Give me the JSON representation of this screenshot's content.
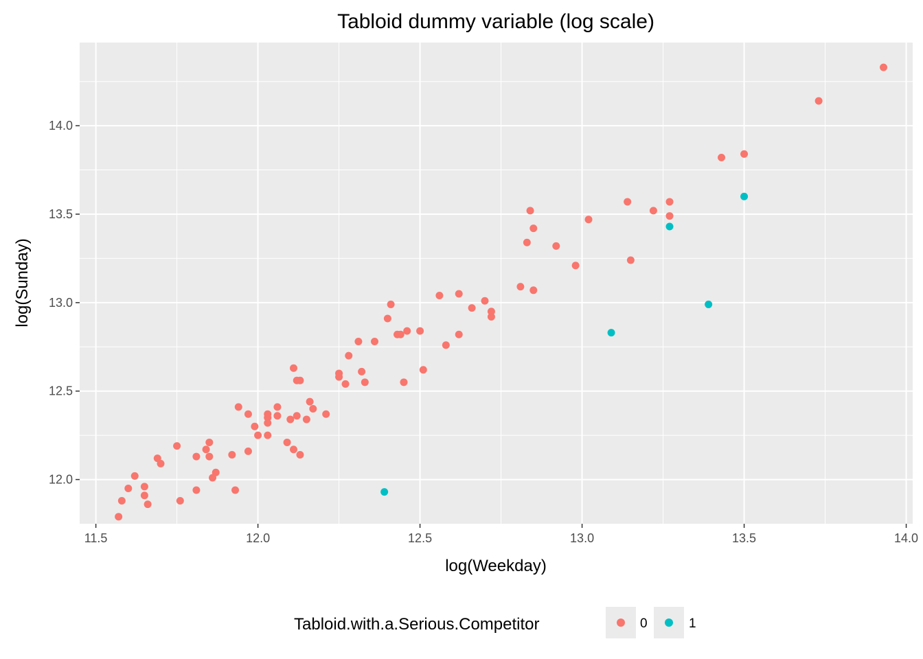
{
  "chart_data": {
    "type": "scatter",
    "title": "Tabloid dummy variable (log scale)",
    "xlabel": "log(Weekday)",
    "ylabel": "log(Sunday)",
    "xlim": [
      11.45,
      14.02
    ],
    "ylim": [
      11.75,
      14.47
    ],
    "xticks": [
      11.5,
      12.0,
      12.5,
      13.0,
      13.5,
      14.0
    ],
    "xtick_labels": [
      "11.5",
      "12.0",
      "12.5",
      "13.0",
      "13.5",
      "14.0"
    ],
    "yticks": [
      12.0,
      12.5,
      13.0,
      13.5,
      14.0
    ],
    "ytick_labels": [
      "12.0",
      "12.5",
      "13.0",
      "13.5",
      "14.0"
    ],
    "grid": true,
    "legend": {
      "title": "Tabloid.with.a.Serious.Competitor",
      "position": "bottom",
      "labels": [
        "0",
        "1"
      ]
    },
    "colors": {
      "0": "#F8766D",
      "1": "#00BFC4"
    },
    "series": [
      {
        "name": "0",
        "x": [
          11.57,
          11.58,
          11.6,
          11.62,
          11.65,
          11.65,
          11.66,
          11.69,
          11.7,
          11.75,
          11.76,
          11.81,
          11.81,
          11.84,
          11.85,
          11.85,
          11.86,
          11.87,
          11.92,
          11.93,
          11.94,
          11.97,
          11.97,
          11.99,
          12.0,
          12.03,
          12.03,
          12.03,
          12.03,
          12.06,
          12.06,
          12.09,
          12.1,
          12.11,
          12.11,
          12.12,
          12.12,
          12.13,
          12.13,
          12.15,
          12.16,
          12.17,
          12.21,
          12.25,
          12.25,
          12.27,
          12.28,
          12.31,
          12.32,
          12.33,
          12.36,
          12.4,
          12.41,
          12.43,
          12.44,
          12.45,
          12.46,
          12.5,
          12.51,
          12.56,
          12.58,
          12.62,
          12.62,
          12.66,
          12.7,
          12.72,
          12.72,
          12.81,
          12.83,
          12.84,
          12.85,
          12.85,
          12.92,
          12.98,
          13.02,
          13.14,
          13.15,
          13.22,
          13.27,
          13.27,
          13.43,
          13.5,
          13.73,
          13.93
        ],
        "y": [
          11.79,
          11.88,
          11.95,
          12.02,
          11.91,
          11.96,
          11.86,
          12.12,
          12.09,
          12.19,
          11.88,
          12.13,
          11.94,
          12.17,
          12.21,
          12.13,
          12.01,
          12.04,
          12.14,
          11.94,
          12.41,
          12.37,
          12.16,
          12.3,
          12.25,
          12.37,
          12.35,
          12.32,
          12.25,
          12.41,
          12.36,
          12.21,
          12.34,
          12.63,
          12.17,
          12.56,
          12.36,
          12.56,
          12.14,
          12.34,
          12.44,
          12.4,
          12.37,
          12.6,
          12.58,
          12.54,
          12.7,
          12.78,
          12.61,
          12.55,
          12.78,
          12.91,
          12.99,
          12.82,
          12.82,
          12.55,
          12.84,
          12.84,
          12.62,
          13.04,
          12.76,
          13.05,
          12.82,
          12.97,
          13.01,
          12.95,
          12.92,
          13.09,
          13.34,
          13.52,
          13.42,
          13.07,
          13.32,
          13.21,
          13.47,
          13.57,
          13.24,
          13.52,
          13.57,
          13.49,
          13.82,
          13.84,
          14.14,
          14.33
        ]
      },
      {
        "name": "1",
        "x": [
          12.39,
          13.09,
          13.27,
          13.39,
          13.5
        ],
        "y": [
          11.93,
          12.83,
          13.43,
          12.99,
          13.6
        ]
      }
    ]
  }
}
